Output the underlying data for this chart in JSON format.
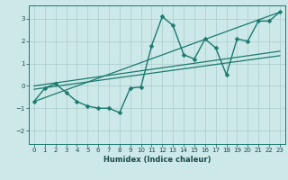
{
  "title": "",
  "xlabel": "Humidex (Indice chaleur)",
  "ylabel": "",
  "bg_color": "#cce8e8",
  "line_color": "#1a7a6e",
  "grid_color": "#aacccc",
  "xlim": [
    -0.5,
    23.5
  ],
  "ylim": [
    -2.6,
    3.6
  ],
  "xticks": [
    0,
    1,
    2,
    3,
    4,
    5,
    6,
    7,
    8,
    9,
    10,
    11,
    12,
    13,
    14,
    15,
    16,
    17,
    18,
    19,
    20,
    21,
    22,
    23
  ],
  "yticks": [
    -2,
    -1,
    0,
    1,
    2,
    3
  ],
  "series": [
    {
      "x": [
        0,
        1,
        2,
        3,
        4,
        5,
        6,
        7,
        8,
        9,
        10,
        11,
        12,
        13,
        14,
        15,
        16,
        17,
        18,
        19,
        20,
        21,
        22,
        23
      ],
      "y": [
        -0.7,
        -0.1,
        0.1,
        -0.3,
        -0.7,
        -0.9,
        -1.0,
        -1.0,
        -1.2,
        -0.1,
        -0.05,
        1.8,
        3.1,
        2.7,
        1.4,
        1.2,
        2.1,
        1.7,
        0.5,
        2.1,
        2.0,
        2.9,
        2.9,
        3.3
      ],
      "marker": "D",
      "markersize": 2.5,
      "linewidth": 1.0
    },
    {
      "x": [
        0,
        23
      ],
      "y": [
        -0.7,
        3.3
      ],
      "marker": null,
      "linewidth": 0.9
    },
    {
      "x": [
        0,
        23
      ],
      "y": [
        0.0,
        1.55
      ],
      "marker": null,
      "linewidth": 0.9
    },
    {
      "x": [
        0,
        23
      ],
      "y": [
        -0.15,
        1.35
      ],
      "marker": null,
      "linewidth": 0.9
    }
  ]
}
